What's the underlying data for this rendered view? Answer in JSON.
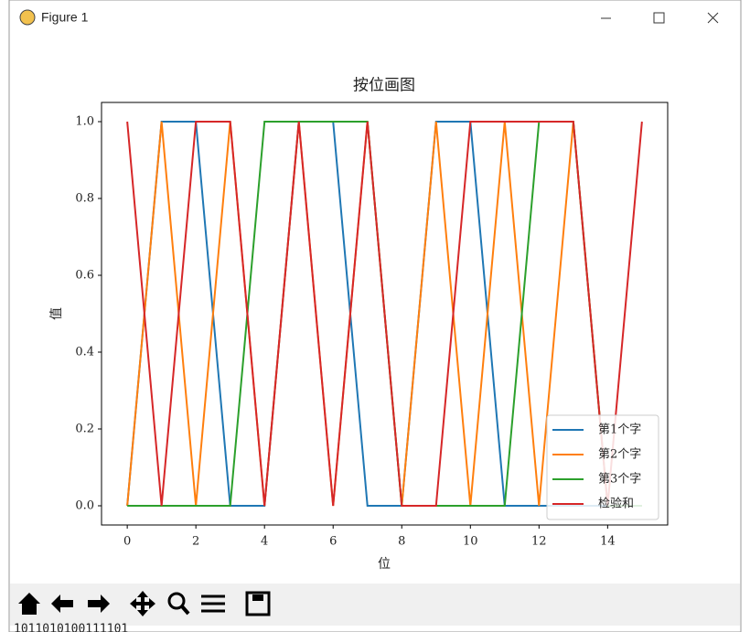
{
  "window": {
    "title": "Figure 1"
  },
  "console_text": "1011010100111101",
  "chart_data": {
    "type": "line",
    "title": "按位画图",
    "xlabel": "位",
    "ylabel": "值",
    "x": [
      0,
      1,
      2,
      3,
      4,
      5,
      6,
      7,
      8,
      9,
      10,
      11,
      12,
      13,
      14,
      15
    ],
    "series": [
      {
        "name": "第1个字",
        "color": "#1f77b4",
        "values": [
          0,
          1,
          1,
          0,
          0,
          1,
          1,
          0,
          0,
          1,
          1,
          0,
          0,
          0,
          0,
          0
        ]
      },
      {
        "name": "第2个字",
        "color": "#ff7f0e",
        "values": [
          0,
          1,
          0,
          1,
          0,
          1,
          0,
          1,
          0,
          1,
          0,
          1,
          0,
          1,
          0,
          0
        ]
      },
      {
        "name": "第3个字",
        "color": "#2ca02c",
        "values": [
          0,
          0,
          0,
          0,
          1,
          1,
          1,
          1,
          0,
          0,
          0,
          0,
          1,
          1,
          0,
          0
        ]
      },
      {
        "name": "检验和",
        "color": "#d62728",
        "values": [
          1,
          0,
          1,
          1,
          0,
          1,
          0,
          1,
          0,
          0,
          1,
          1,
          1,
          1,
          0,
          1
        ]
      }
    ],
    "xlim": [
      -0.75,
      15.75
    ],
    "xticks": [
      0,
      2,
      4,
      6,
      8,
      10,
      12,
      14
    ],
    "ylim": [
      -0.05,
      1.05
    ],
    "yticks": [
      {
        "value": 0,
        "label": "0.0"
      },
      {
        "value": 0.2,
        "label": "0.2"
      },
      {
        "value": 0.4,
        "label": "0.4"
      },
      {
        "value": 0.6,
        "label": "0.6"
      },
      {
        "value": 0.8,
        "label": "0.8"
      },
      {
        "value": 1,
        "label": "1.0"
      }
    ],
    "legend": "lower right"
  }
}
